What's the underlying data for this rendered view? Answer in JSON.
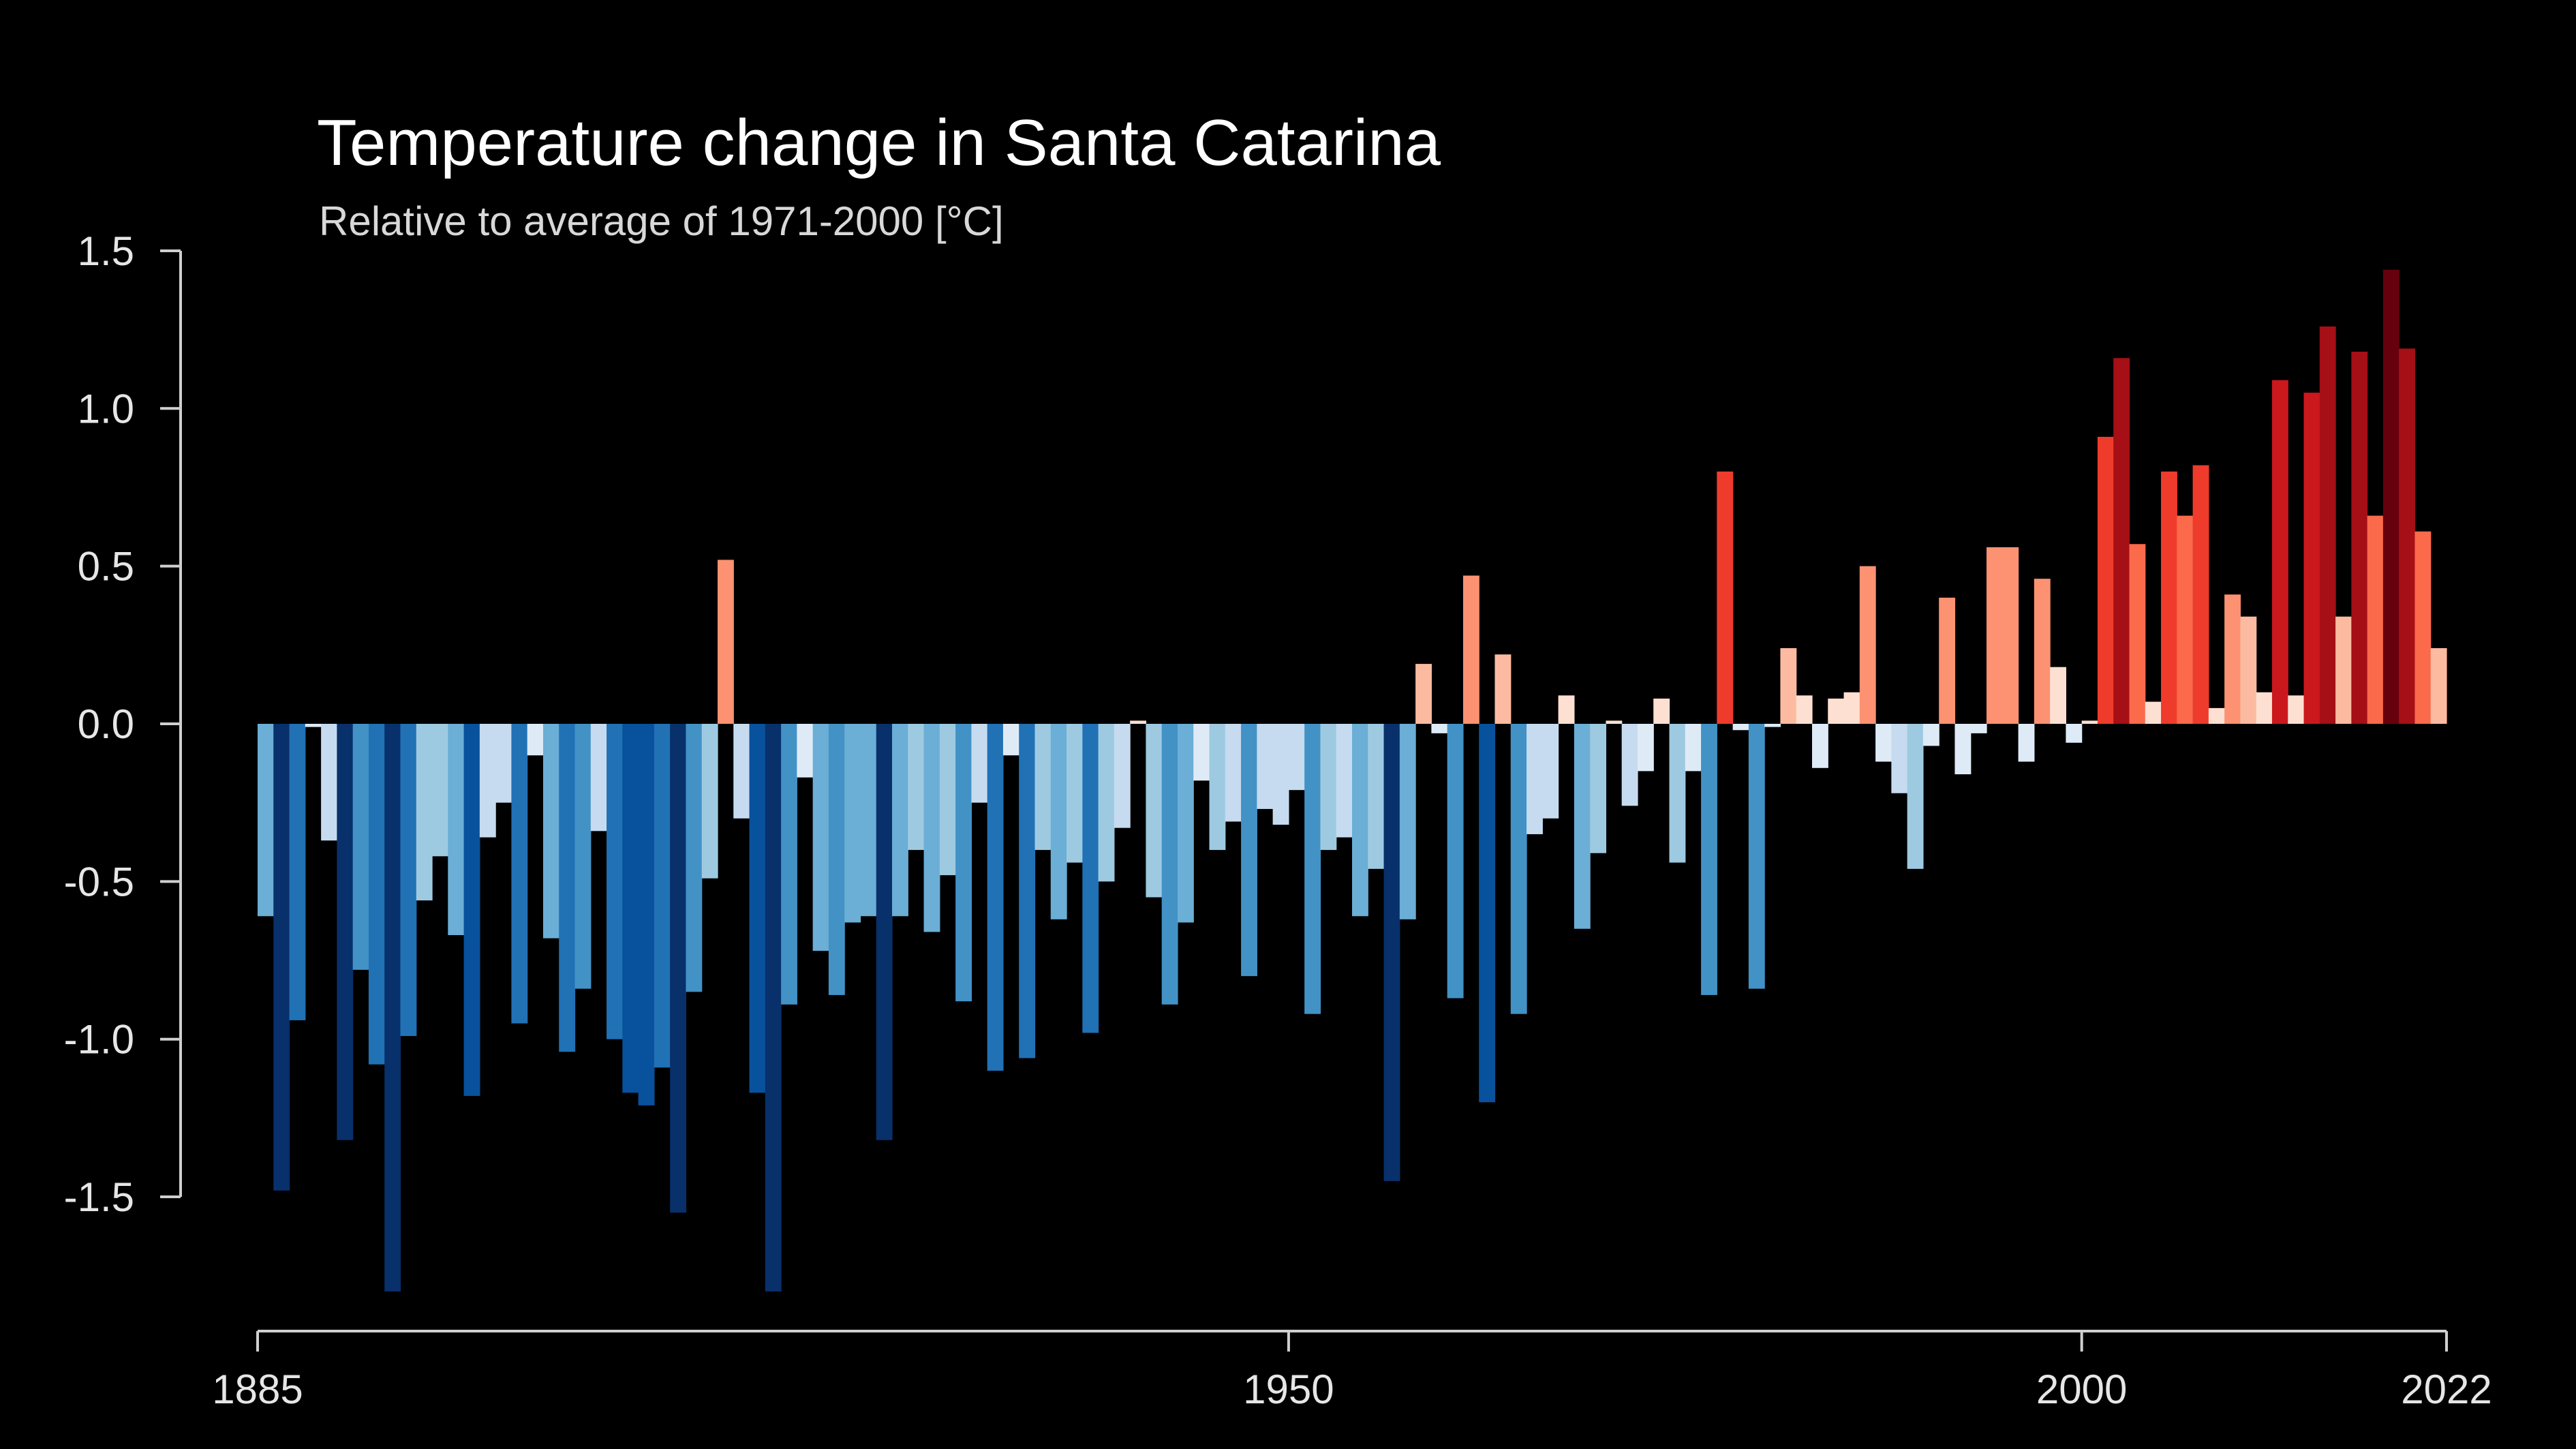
{
  "chart_data": {
    "type": "bar",
    "title": "Temperature change in Santa Catarina",
    "subtitle": "Relative to average of 1971-2000  [°C]",
    "xlabel": "",
    "ylabel": "",
    "x_range": [
      1885,
      2022
    ],
    "ylim": [
      -1.75,
      1.5
    ],
    "yticks": [
      1.5,
      1.0,
      0.5,
      0.0,
      -0.5,
      -1.0,
      -1.5
    ],
    "ytick_labels": [
      "1.5",
      "1.0",
      "0.5",
      "0.0",
      "-0.5",
      "-1.0",
      "-1.5"
    ],
    "xticks": [
      1885,
      1950,
      2000,
      2022
    ],
    "xtick_labels": [
      "1885",
      "1950",
      "2000",
      "2022"
    ],
    "grid": false,
    "legend": "none",
    "color_scale": [
      "#08306b",
      "#08519c",
      "#2171b5",
      "#4292c6",
      "#6baed6",
      "#9ecae1",
      "#c6dbef",
      "#deebf7",
      "#fee0d2",
      "#fcbba1",
      "#fc9272",
      "#fb6a4a",
      "#ef3b2c",
      "#cb181d",
      "#a50f15",
      "#67000d"
    ],
    "color_range": [
      -1.5,
      1.5
    ],
    "series": [
      {
        "x": [
          1885,
          1886,
          1887,
          1888,
          1889,
          1890,
          1891,
          1892,
          1893,
          1894,
          1895,
          1896,
          1897,
          1898,
          1899,
          1900,
          1901,
          1902,
          1903,
          1904,
          1905,
          1906,
          1907,
          1908,
          1909,
          1910,
          1911,
          1912,
          1913,
          1914,
          1915,
          1916,
          1917,
          1918,
          1919,
          1920,
          1921,
          1922,
          1923,
          1924,
          1925,
          1926,
          1927,
          1928,
          1929,
          1930,
          1931,
          1932,
          1933,
          1934,
          1935,
          1936,
          1937,
          1938,
          1939,
          1940,
          1941,
          1942,
          1943,
          1944,
          1945,
          1946,
          1947,
          1948,
          1949,
          1950,
          1951,
          1952,
          1953,
          1954,
          1955,
          1956,
          1957,
          1958,
          1959,
          1960,
          1961,
          1962,
          1963,
          1964,
          1965,
          1966,
          1967,
          1968,
          1969,
          1970,
          1971,
          1972,
          1973,
          1974,
          1975,
          1976,
          1977,
          1978,
          1979,
          1980,
          1981,
          1982,
          1983,
          1984,
          1985,
          1986,
          1987,
          1988,
          1989,
          1990,
          1991,
          1992,
          1993,
          1994,
          1995,
          1996,
          1997,
          1998,
          1999,
          2000,
          2001,
          2002,
          2003,
          2004,
          2005,
          2006,
          2007,
          2008,
          2009,
          2010,
          2011,
          2012,
          2013,
          2014,
          2015,
          2016,
          2017,
          2018,
          2019,
          2020,
          2021,
          2022
        ],
        "values": [
          -0.61,
          -1.48,
          -0.94,
          -0.01,
          -0.37,
          -1.32,
          -0.78,
          -1.08,
          -1.8,
          -0.99,
          -0.56,
          -0.42,
          -0.67,
          -1.18,
          -0.36,
          -0.25,
          -0.95,
          -0.1,
          -0.68,
          -1.04,
          -0.84,
          -0.34,
          -1.0,
          -1.17,
          -1.21,
          -1.09,
          -1.55,
          -0.85,
          -0.49,
          0.52,
          -0.3,
          -1.17,
          -1.8,
          -0.89,
          -0.17,
          -0.72,
          -0.86,
          -0.63,
          -0.61,
          -1.32,
          -0.61,
          -0.4,
          -0.66,
          -0.48,
          -0.88,
          -0.25,
          -1.1,
          -0.1,
          -1.06,
          -0.4,
          -0.62,
          -0.44,
          -0.98,
          -0.5,
          -0.33,
          0.01,
          -0.55,
          -0.89,
          -0.63,
          -0.18,
          -0.4,
          -0.31,
          -0.8,
          -0.27,
          -0.32,
          -0.21,
          -0.92,
          -0.4,
          -0.36,
          -0.61,
          -0.46,
          -1.45,
          -0.62,
          0.19,
          -0.03,
          -0.87,
          0.47,
          -1.2,
          0.22,
          -0.92,
          -0.35,
          -0.3,
          0.09,
          -0.65,
          -0.41,
          0.01,
          -0.26,
          -0.15,
          0.08,
          -0.44,
          -0.15,
          -0.86,
          0.8,
          -0.02,
          -0.84,
          -0.01,
          0.24,
          0.09,
          -0.14,
          0.08,
          0.1,
          0.5,
          -0.12,
          -0.22,
          -0.46,
          -0.07,
          0.4,
          -0.16,
          -0.03,
          0.56,
          0.56,
          -0.12,
          0.46,
          0.18,
          -0.06,
          0.01,
          0.91,
          1.16,
          0.57,
          0.07,
          0.8,
          0.66,
          0.82,
          0.05,
          0.41,
          0.34,
          0.1,
          1.09,
          0.09,
          1.05,
          1.26,
          0.34,
          1.18,
          0.66,
          1.44,
          1.19,
          0.61,
          0.24
        ]
      }
    ]
  }
}
